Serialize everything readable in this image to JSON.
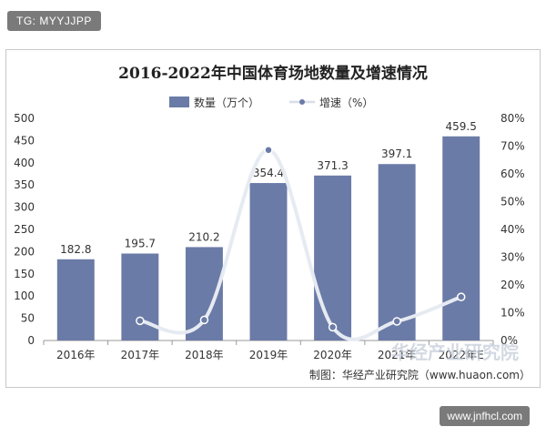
{
  "watermark_top": "TG: MYYJJPP",
  "watermark_bottom": "www.jnfhcl.com",
  "overlay_text": "华经产业研究院",
  "source": "制图：华经产业研究院（www.huaon.com）",
  "colors": {
    "bar": "#6b7ba7",
    "line": "#e6ebf2",
    "marker": "#6b7ba7",
    "axis": "#999999"
  },
  "chart_data": {
    "type": "bar",
    "title": "2016-2022年中国体育场地数量及增速情况",
    "categories": [
      "2016年",
      "2017年",
      "2018年",
      "2019年",
      "2020年",
      "2021年",
      "2022年E"
    ],
    "series": [
      {
        "name": "数量（万个）",
        "type": "bar",
        "axis": "left",
        "values": [
          182.8,
          195.7,
          210.2,
          354.4,
          371.3,
          397.1,
          459.5
        ],
        "labels": [
          "182.8",
          "195.7",
          "210.2",
          "354.4",
          "371.3",
          "397.1",
          "459.5"
        ]
      },
      {
        "name": "增速（%）",
        "type": "line",
        "axis": "right",
        "smooth": true,
        "values": [
          null,
          7.1,
          7.4,
          68.6,
          4.8,
          6.9,
          15.7
        ]
      }
    ],
    "ylim": [
      0,
      500
    ],
    "yticks": [
      "0",
      "50",
      "100",
      "150",
      "200",
      "250",
      "300",
      "350",
      "400",
      "450",
      "500"
    ],
    "y2lim": [
      0,
      80
    ],
    "y2ticks": [
      "0%",
      "10%",
      "20%",
      "30%",
      "40%",
      "50%",
      "60%",
      "70%",
      "80%"
    ],
    "legend_position": "top-center",
    "grid": false
  }
}
